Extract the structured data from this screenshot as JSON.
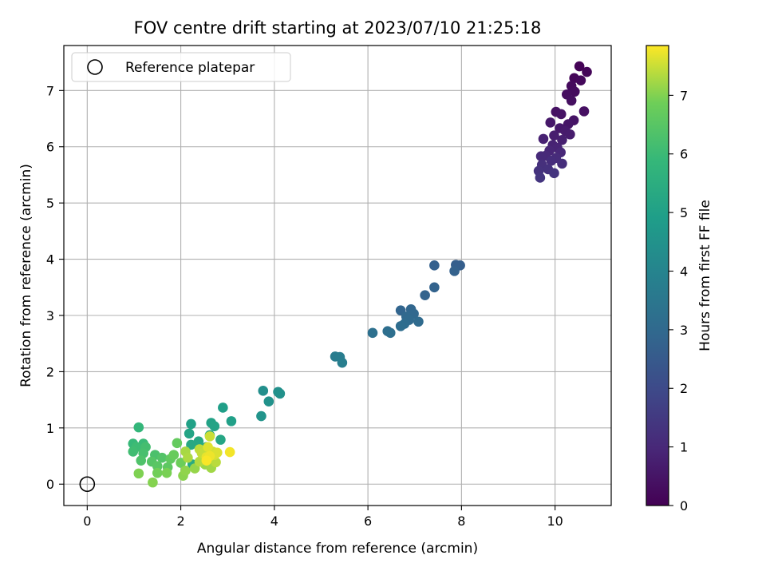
{
  "chart_data": {
    "type": "scatter",
    "title": "FOV centre drift starting at 2023/07/10 21:25:18",
    "xlabel": "Angular distance from reference (arcmin)",
    "ylabel": "Rotation from reference (arcmin)",
    "xlim": [
      -0.5,
      11.2
    ],
    "ylim": [
      -0.38,
      7.8
    ],
    "xticks": [
      0,
      2,
      4,
      6,
      8,
      10
    ],
    "yticks": [
      0,
      1,
      2,
      3,
      4,
      5,
      6,
      7
    ],
    "grid": true,
    "colormap": "viridis",
    "colorbar": {
      "label": "Hours from first FF file",
      "range": [
        0,
        7.85
      ],
      "ticks": [
        0,
        1,
        2,
        3,
        4,
        5,
        6,
        7
      ]
    },
    "legend": {
      "position": "top-left",
      "entries": [
        "Reference platepar"
      ]
    },
    "reference_point": {
      "label": "Reference platepar",
      "x": 0,
      "y": 0,
      "marker": "open-circle",
      "color": "#000000"
    },
    "series": [
      {
        "points": [
          [
            10.52,
            7.43,
            0.05
          ],
          [
            10.68,
            7.33,
            0.1
          ],
          [
            10.41,
            7.22,
            0.13
          ],
          [
            10.55,
            7.18,
            0.18
          ],
          [
            10.35,
            7.08,
            0.22
          ],
          [
            10.42,
            6.98,
            0.26
          ],
          [
            10.25,
            6.93,
            0.3
          ],
          [
            10.35,
            6.82,
            0.34
          ],
          [
            10.62,
            6.63,
            0.37
          ],
          [
            10.02,
            6.62,
            0.42
          ],
          [
            10.13,
            6.58,
            0.45
          ],
          [
            10.4,
            6.47,
            0.49
          ],
          [
            10.28,
            6.4,
            0.53
          ],
          [
            9.9,
            6.43,
            0.57
          ],
          [
            10.1,
            6.33,
            0.61
          ],
          [
            10.22,
            6.28,
            0.65
          ],
          [
            10.32,
            6.22,
            0.69
          ],
          [
            9.98,
            6.2,
            0.73
          ],
          [
            10.15,
            6.12,
            0.77
          ],
          [
            9.75,
            6.14,
            0.81
          ],
          [
            9.95,
            6.03,
            0.85
          ],
          [
            10.05,
            5.98,
            0.89
          ],
          [
            9.88,
            5.93,
            0.93
          ],
          [
            10.12,
            5.9,
            0.97
          ],
          [
            9.8,
            5.84,
            1.01
          ],
          [
            9.7,
            5.83,
            1.05
          ],
          [
            10.02,
            5.8,
            1.09
          ],
          [
            9.92,
            5.75,
            1.13
          ],
          [
            10.15,
            5.7,
            1.17
          ],
          [
            9.72,
            5.68,
            1.21
          ],
          [
            9.85,
            5.6,
            1.25
          ],
          [
            9.65,
            5.57,
            1.29
          ],
          [
            9.98,
            5.53,
            1.33
          ],
          [
            9.68,
            5.45,
            1.37
          ],
          [
            7.97,
            3.89,
            2.62
          ],
          [
            7.88,
            3.9,
            2.66
          ],
          [
            7.42,
            3.89,
            2.7
          ],
          [
            7.85,
            3.79,
            2.74
          ],
          [
            7.42,
            3.5,
            2.78
          ],
          [
            7.22,
            3.36,
            2.82
          ],
          [
            6.7,
            3.09,
            2.86
          ],
          [
            6.92,
            3.11,
            2.9
          ],
          [
            6.98,
            3.03,
            2.94
          ],
          [
            6.82,
            2.98,
            2.98
          ],
          [
            6.88,
            2.92,
            3.02
          ],
          [
            7.08,
            2.89,
            3.06
          ],
          [
            6.78,
            2.85,
            3.1
          ],
          [
            6.7,
            2.81,
            3.14
          ],
          [
            6.42,
            2.72,
            3.18
          ],
          [
            6.48,
            2.69,
            3.22
          ],
          [
            6.1,
            2.69,
            3.26
          ],
          [
            5.3,
            2.27,
            3.7
          ],
          [
            5.4,
            2.26,
            3.74
          ],
          [
            5.45,
            2.16,
            3.78
          ],
          [
            3.76,
            1.66,
            4.38
          ],
          [
            4.08,
            1.64,
            4.42
          ],
          [
            4.12,
            1.61,
            4.46
          ],
          [
            3.88,
            1.47,
            4.5
          ],
          [
            3.72,
            1.21,
            4.54
          ],
          [
            2.9,
            1.36,
            4.95
          ],
          [
            3.08,
            1.12,
            4.99
          ],
          [
            2.22,
            1.07,
            5.03
          ],
          [
            2.65,
            1.09,
            5.07
          ],
          [
            2.72,
            1.03,
            5.11
          ],
          [
            2.18,
            0.9,
            5.15
          ],
          [
            2.62,
            0.87,
            5.19
          ],
          [
            2.85,
            0.79,
            5.23
          ],
          [
            2.38,
            0.76,
            5.27
          ],
          [
            2.22,
            0.7,
            5.31
          ],
          [
            2.55,
            0.66,
            5.35
          ],
          [
            2.25,
            0.35,
            5.39
          ],
          [
            1.1,
            1.01,
            5.85
          ],
          [
            0.98,
            0.72,
            5.92
          ],
          [
            1.2,
            0.72,
            5.98
          ],
          [
            1.05,
            0.66,
            6.04
          ],
          [
            0.98,
            0.58,
            6.1
          ],
          [
            1.25,
            0.66,
            6.16
          ],
          [
            1.2,
            0.55,
            6.22
          ],
          [
            1.45,
            0.52,
            6.28
          ],
          [
            1.15,
            0.42,
            6.34
          ],
          [
            1.6,
            0.47,
            6.4
          ],
          [
            1.38,
            0.4,
            6.46
          ],
          [
            1.5,
            0.32,
            6.52
          ],
          [
            1.72,
            0.3,
            6.58
          ],
          [
            1.78,
            0.45,
            6.64
          ],
          [
            1.92,
            0.73,
            6.7
          ],
          [
            1.85,
            0.52,
            6.76
          ],
          [
            2.0,
            0.38,
            6.82
          ],
          [
            1.5,
            0.2,
            6.88
          ],
          [
            1.7,
            0.2,
            6.94
          ],
          [
            1.1,
            0.19,
            6.98
          ],
          [
            1.4,
            0.03,
            7.02
          ],
          [
            2.05,
            0.15,
            7.06
          ],
          [
            2.1,
            0.24,
            7.1
          ],
          [
            2.3,
            0.28,
            7.14
          ],
          [
            2.52,
            0.35,
            7.18
          ],
          [
            2.65,
            0.29,
            7.22
          ],
          [
            2.1,
            0.58,
            7.26
          ],
          [
            2.15,
            0.47,
            7.3
          ],
          [
            2.4,
            0.4,
            7.34
          ],
          [
            2.75,
            0.39,
            7.38
          ],
          [
            2.4,
            0.62,
            7.42
          ],
          [
            2.45,
            0.55,
            7.46
          ],
          [
            2.62,
            0.85,
            7.5
          ],
          [
            2.68,
            0.58,
            7.54
          ],
          [
            2.72,
            0.52,
            7.58
          ],
          [
            2.78,
            0.56,
            7.62
          ],
          [
            2.58,
            0.66,
            7.66
          ],
          [
            2.55,
            0.48,
            7.7
          ],
          [
            2.62,
            0.5,
            7.74
          ],
          [
            3.05,
            0.57,
            7.78
          ],
          [
            2.55,
            0.42,
            7.82
          ]
        ]
      }
    ]
  }
}
